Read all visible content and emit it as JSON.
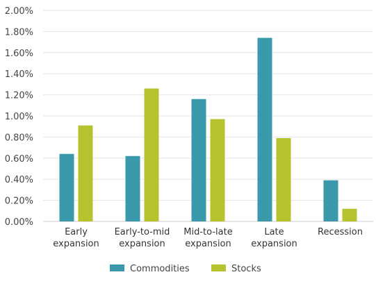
{
  "chart_data": {
    "type": "bar",
    "categories": [
      [
        "Early",
        "expansion"
      ],
      [
        "Early-to-mid",
        "expansion"
      ],
      [
        "Mid-to-late",
        "expansion"
      ],
      [
        "Late",
        "expansion"
      ],
      [
        "Recession"
      ]
    ],
    "series": [
      {
        "name": "Commodities",
        "color": "#3a9aac",
        "values": [
          0.64,
          0.62,
          1.16,
          1.74,
          0.39
        ]
      },
      {
        "name": "Stocks",
        "color": "#b6c32e",
        "values": [
          0.91,
          1.26,
          0.97,
          0.79,
          0.12
        ]
      }
    ],
    "ylim": [
      0,
      2.0
    ],
    "yticks": [
      "0.00%",
      "0.20%",
      "0.40%",
      "0.60%",
      "0.80%",
      "1.00%",
      "1.20%",
      "1.40%",
      "1.60%",
      "1.80%",
      "2.00%"
    ],
    "grid": true,
    "legend_position": "bottom"
  }
}
